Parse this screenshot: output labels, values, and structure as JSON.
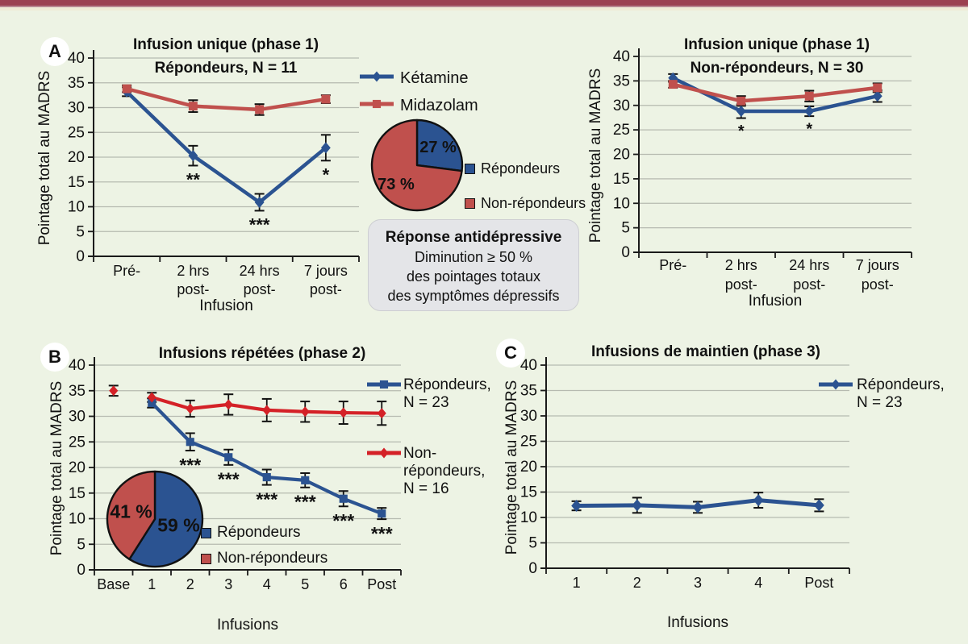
{
  "page": {
    "background": "#edf3e4",
    "top_bar_color": "#9c4051",
    "grid_color": "#b6bab0",
    "axis_color": "#1a1a1a",
    "blue": "#2b5391",
    "red_phase1": "#c0504d",
    "red_phase2": "#d42127"
  },
  "panel_labels": {
    "A": "A",
    "B": "B",
    "C": "C"
  },
  "legend_phase1": {
    "items": [
      {
        "label": "Kétamine",
        "color": "#2b5391",
        "marker": "diamond"
      },
      {
        "label": "Midazolam",
        "color": "#c0504d",
        "marker": "square"
      }
    ]
  },
  "pie_legend": {
    "responders": "Répondeurs",
    "non_responders": "Non-répondeurs"
  },
  "response_box": {
    "title": "Réponse antidépressive",
    "line1": "Diminution ≥ 50 %",
    "line2": "des pointages totaux",
    "line3": "des symptômes dépressifs"
  },
  "chart_data": [
    {
      "id": "phase1-responders",
      "type": "line",
      "title": "Infusion unique (phase 1)",
      "subtitle": "Répondeurs, N = 11",
      "ylabel": "Pointage total au MADRS",
      "xlabel": "Infusion",
      "ylim": [
        0,
        40
      ],
      "ystep": 5,
      "grid": true,
      "legend_position": "shared-middle",
      "categories": [
        [
          "Pré-"
        ],
        [
          "2 hrs",
          "post-"
        ],
        [
          "24 hrs",
          "post-"
        ],
        [
          "7 jours",
          "post-"
        ]
      ],
      "series": [
        {
          "name": "Kétamine",
          "color": "#2b5391",
          "marker": "diamond",
          "values": [
            33.2,
            20.3,
            10.9,
            21.9
          ],
          "err": [
            0.9,
            2.0,
            1.7,
            2.6
          ]
        },
        {
          "name": "Midazolam",
          "color": "#c0504d",
          "marker": "square",
          "values": [
            33.8,
            30.3,
            29.6,
            31.7
          ],
          "err": [
            0.7,
            1.2,
            1.1,
            0.8
          ]
        }
      ],
      "sig_series": 0,
      "sig": [
        {
          "i": 1,
          "t": "**"
        },
        {
          "i": 2,
          "t": "***"
        },
        {
          "i": 3,
          "t": "*"
        }
      ]
    },
    {
      "id": "phase1-nonresponders",
      "type": "line",
      "title": "Infusion unique (phase 1)",
      "subtitle": "Non-répondeurs, N = 30",
      "ylabel": "Pointage total au MADRS",
      "xlabel": "Infusion",
      "ylim": [
        0,
        40
      ],
      "ystep": 5,
      "grid": true,
      "legend_position": "none",
      "categories": [
        [
          "Pré-"
        ],
        [
          "2 hrs",
          "post-"
        ],
        [
          "24 hrs",
          "post-"
        ],
        [
          "7 jours",
          "post-"
        ]
      ],
      "series": [
        {
          "name": "Kétamine",
          "color": "#2b5391",
          "marker": "diamond",
          "values": [
            35.6,
            28.8,
            28.8,
            31.9
          ],
          "err": [
            0.8,
            1.4,
            1.0,
            1.2
          ]
        },
        {
          "name": "Midazolam",
          "color": "#c0504d",
          "marker": "square",
          "values": [
            34.3,
            30.9,
            31.9,
            33.6
          ],
          "err": [
            0.7,
            1.0,
            1.1,
            0.9
          ]
        }
      ],
      "sig_series": 0,
      "sig": [
        {
          "i": 1,
          "t": "*"
        },
        {
          "i": 2,
          "t": "*"
        }
      ]
    },
    {
      "id": "phase2-repeated",
      "type": "line",
      "title": "Infusions répétées (phase 2)",
      "subtitle": "",
      "ylabel": "Pointage total au MADRS",
      "xlabel": "Infusions",
      "ylim": [
        0,
        40
      ],
      "ystep": 5,
      "grid": true,
      "legend_position": "right",
      "categories": [
        [
          "Base"
        ],
        [
          "1"
        ],
        [
          "2"
        ],
        [
          "3"
        ],
        [
          "4"
        ],
        [
          "5"
        ],
        [
          "6"
        ],
        [
          "Post"
        ]
      ],
      "series": [
        {
          "name": "Répondeurs, N = 23",
          "color": "#2b5391",
          "marker": "square",
          "legend_lines": [
            "Répondeurs,",
            "N = 23"
          ],
          "values": [
            null,
            32.6,
            25.0,
            22.0,
            18.1,
            17.5,
            13.9,
            11.0
          ],
          "err": [
            null,
            0.9,
            1.7,
            1.5,
            1.5,
            1.4,
            1.5,
            1.1
          ]
        },
        {
          "name": "Non-répondeurs, N = 16",
          "color": "#d42127",
          "marker": "diamond",
          "legend_lines": [
            "Non-",
            "répondeurs,",
            "N = 16"
          ],
          "line_start": 1,
          "values": [
            35.0,
            33.7,
            31.5,
            32.3,
            31.2,
            30.9,
            30.7,
            30.6
          ],
          "err": [
            1.0,
            0.9,
            1.6,
            2.0,
            2.2,
            2.0,
            2.2,
            2.3
          ]
        }
      ],
      "sig_series": 0,
      "sig": [
        {
          "i": 2,
          "t": "***"
        },
        {
          "i": 3,
          "t": "***"
        },
        {
          "i": 4,
          "t": "***"
        },
        {
          "i": 5,
          "t": "***"
        },
        {
          "i": 6,
          "t": "***"
        },
        {
          "i": 7,
          "t": "***"
        }
      ]
    },
    {
      "id": "phase3-maintenance",
      "type": "line",
      "title": "Infusions de maintien (phase 3)",
      "subtitle": "",
      "ylabel": "Pointage total au MADRS",
      "xlabel": "Infusions",
      "ylim": [
        0,
        40
      ],
      "ystep": 5,
      "grid": true,
      "legend_position": "right",
      "categories": [
        [
          "1"
        ],
        [
          "2"
        ],
        [
          "3"
        ],
        [
          "4"
        ],
        [
          "Post"
        ]
      ],
      "series": [
        {
          "name": "Répondeurs, N = 23",
          "color": "#2b5391",
          "marker": "diamond",
          "legend_lines": [
            "Répondeurs,",
            "N = 23"
          ],
          "values": [
            12.3,
            12.4,
            12.0,
            13.4,
            12.4
          ],
          "err": [
            0.9,
            1.5,
            1.1,
            1.5,
            1.2
          ]
        }
      ],
      "sig_series": 0,
      "sig": []
    },
    {
      "id": "pie-phase1",
      "type": "pie",
      "title": "Répartition phase 1",
      "slices": [
        {
          "label": "Répondeurs",
          "value": 27,
          "display": "27 %",
          "color": "#2b5391"
        },
        {
          "label": "Non-répondeurs",
          "value": 73,
          "display": "73 %",
          "color": "#c0504d"
        }
      ]
    },
    {
      "id": "pie-phase2",
      "type": "pie",
      "title": "Répartition phase 2",
      "slices": [
        {
          "label": "Répondeurs",
          "value": 59,
          "display": "59 %",
          "color": "#2b5391"
        },
        {
          "label": "Non-répondeurs",
          "value": 41,
          "display": "41 %",
          "color": "#c0504d"
        }
      ]
    }
  ]
}
